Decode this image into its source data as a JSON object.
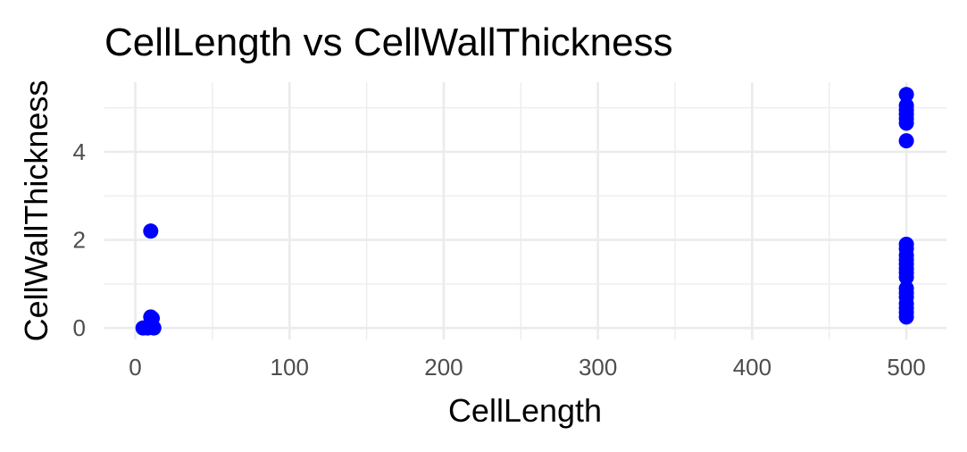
{
  "chart_data": {
    "type": "scatter",
    "title": "CellLength vs CellWallThickness",
    "xlabel": "CellLength",
    "ylabel": "CellWallThickness",
    "xlim": [
      -20,
      526
    ],
    "ylim": [
      -0.26,
      5.58
    ],
    "x_ticks": [
      0,
      100,
      200,
      300,
      400,
      500
    ],
    "x_tick_labels": [
      "0",
      "100",
      "200",
      "300",
      "400",
      "500"
    ],
    "x_minor_ticks": [
      50,
      150,
      250,
      350,
      450
    ],
    "y_ticks": [
      0,
      2,
      4
    ],
    "y_tick_labels": [
      "0",
      "2",
      "4"
    ],
    "y_minor_ticks": [
      1,
      3,
      5
    ],
    "grid": true,
    "legend": "none",
    "point_color": "#0000ff",
    "series": [
      {
        "points": [
          {
            "x": 5,
            "y": 0.0
          },
          {
            "x": 8,
            "y": 0.0
          },
          {
            "x": 10,
            "y": 0.02
          },
          {
            "x": 11,
            "y": 0.05
          },
          {
            "x": 12,
            "y": 0.0
          },
          {
            "x": 10,
            "y": 0.25
          },
          {
            "x": 11,
            "y": 0.22
          },
          {
            "x": 10,
            "y": 2.2
          },
          {
            "x": 500,
            "y": 5.3
          },
          {
            "x": 500,
            "y": 5.05
          },
          {
            "x": 500,
            "y": 4.95
          },
          {
            "x": 500,
            "y": 4.85
          },
          {
            "x": 500,
            "y": 4.75
          },
          {
            "x": 500,
            "y": 4.65
          },
          {
            "x": 500,
            "y": 4.25
          },
          {
            "x": 500,
            "y": 1.9
          },
          {
            "x": 500,
            "y": 1.8
          },
          {
            "x": 500,
            "y": 1.65
          },
          {
            "x": 500,
            "y": 1.55
          },
          {
            "x": 500,
            "y": 1.45
          },
          {
            "x": 500,
            "y": 1.35
          },
          {
            "x": 500,
            "y": 1.25
          },
          {
            "x": 500,
            "y": 1.15
          },
          {
            "x": 500,
            "y": 0.9
          },
          {
            "x": 500,
            "y": 0.8
          },
          {
            "x": 500,
            "y": 0.7
          },
          {
            "x": 500,
            "y": 0.55
          },
          {
            "x": 500,
            "y": 0.45
          },
          {
            "x": 500,
            "y": 0.35
          },
          {
            "x": 500,
            "y": 0.25
          }
        ]
      }
    ]
  }
}
